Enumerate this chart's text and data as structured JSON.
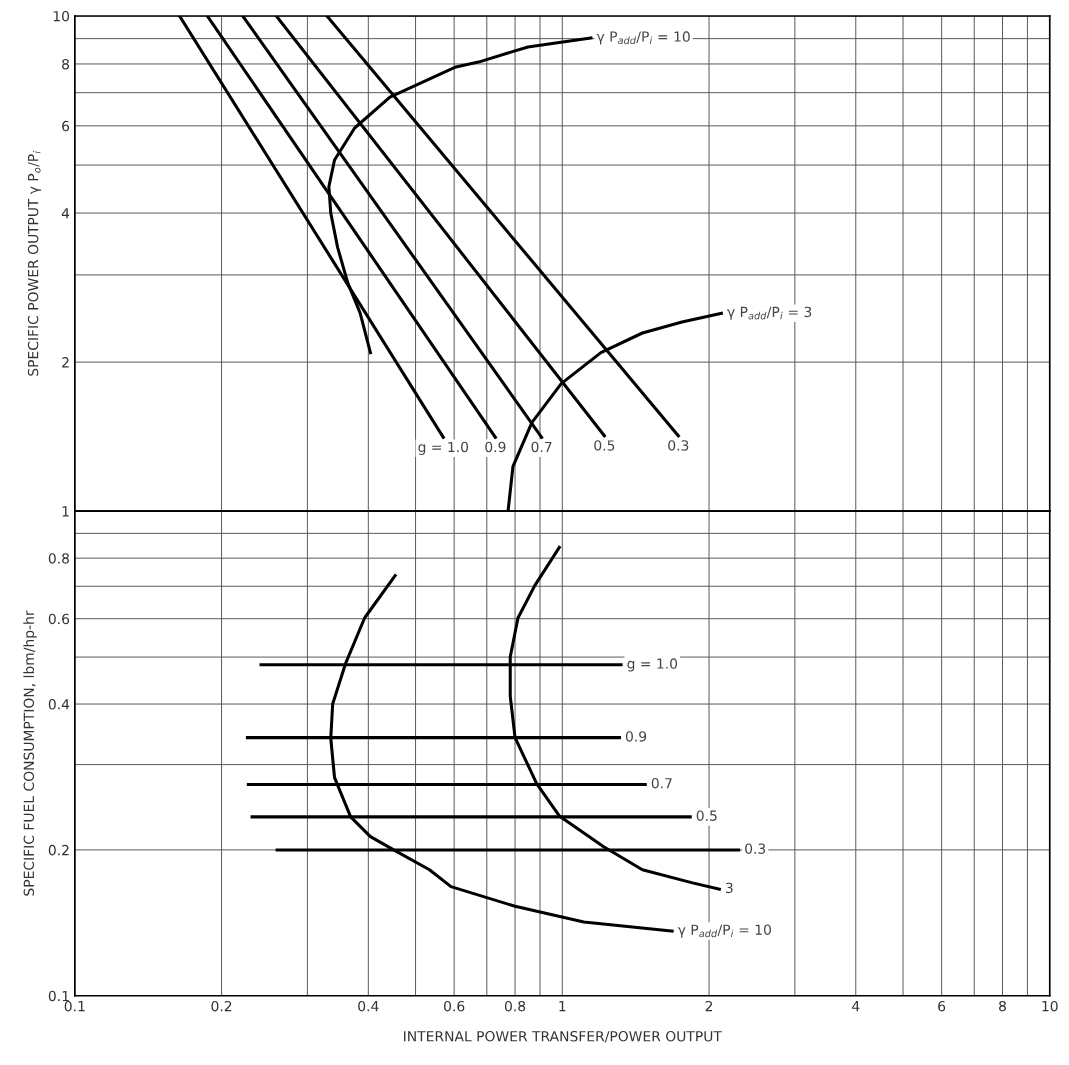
{
  "chart_data": [
    {
      "type": "line",
      "ylabel": "SPECIFIC POWER OUTPUT γ P$_{o}$/P$_{i}$",
      "log": "xy",
      "grid": true,
      "legend": false,
      "tick_labels": "y",
      "line_style": "solid",
      "marker": "none",
      "xlim": [
        0.1,
        10
      ],
      "ylim": [
        1,
        10
      ],
      "xticks": [
        0.1,
        0.2,
        {
          "value": 0.3,
          "label": null
        },
        0.4,
        {
          "value": 0.5,
          "label": null
        },
        0.6,
        {
          "value": 0.7,
          "label": null
        },
        0.8,
        {
          "value": 0.9,
          "label": null
        },
        1,
        2,
        {
          "value": 3,
          "label": null
        },
        4,
        {
          "value": 5,
          "label": null
        },
        6,
        {
          "value": 7,
          "label": null
        },
        8,
        {
          "value": 9,
          "label": null
        },
        10
      ],
      "yticks": [
        1,
        2,
        {
          "value": 3,
          "label": null
        },
        4,
        {
          "value": 5,
          "label": null
        },
        6,
        {
          "value": 7,
          "label": null
        },
        8,
        {
          "value": 9,
          "label": null
        },
        10
      ],
      "series": [
        {
          "name": "g = 1.0",
          "color": "#000000",
          "x": [
            0.164,
            0.57
          ],
          "values": [
            10,
            1.41
          ]
        },
        {
          "name": "0.9",
          "color": "#000000",
          "x": [
            0.187,
            0.729
          ],
          "values": [
            10,
            1.41
          ]
        },
        {
          "name": "0.7",
          "color": "#000000",
          "x": [
            0.221,
            0.907
          ],
          "values": [
            10,
            1.41
          ]
        },
        {
          "name": "0.5",
          "color": "#000000",
          "x": [
            0.259,
            1.22
          ],
          "values": [
            10,
            1.42
          ]
        },
        {
          "name": "0.3",
          "color": "#000000",
          "x": [
            0.329,
            1.73
          ],
          "values": [
            10,
            1.42
          ]
        },
        {
          "name": "γ P$_{add}$/P$_{i}$ = 10",
          "color": "#000000",
          "x": [
            0.404,
            0.385,
            0.363,
            0.346,
            0.335,
            0.332,
            0.341,
            0.375,
            0.443,
            0.605,
            0.673,
            0.85,
            1.145
          ],
          "values": [
            2.09,
            2.51,
            2.89,
            3.41,
            4.0,
            4.52,
            5.12,
            5.94,
            6.86,
            7.89,
            8.07,
            8.66,
            9.03
          ]
        },
        {
          "name": "γ P$_{add}$/P$_{i}$ = 3",
          "color": "#000000",
          "x": [
            0.774,
            0.792,
            0.866,
            0.995,
            1.2,
            1.46,
            1.76,
            2.12
          ],
          "values": [
            1.0,
            1.23,
            1.51,
            1.81,
            2.09,
            2.29,
            2.41,
            2.51
          ]
        }
      ]
    },
    {
      "type": "line",
      "xlabel": "INTERNAL POWER TRANSFER/POWER OUTPUT",
      "ylabel": "SPECIFIC FUEL CONSUMPTION, lbm/hp-hr",
      "log": "xy",
      "grid": true,
      "legend": false,
      "line_style": "solid",
      "marker": "none",
      "xlim": [
        0.1,
        10
      ],
      "ylim": [
        0.1,
        1
      ],
      "xticks": [
        0.1,
        0.2,
        {
          "value": 0.3,
          "label": null
        },
        0.4,
        {
          "value": 0.5,
          "label": null
        },
        0.6,
        {
          "value": 0.7,
          "label": null
        },
        0.8,
        {
          "value": 0.9,
          "label": null
        },
        1,
        2,
        {
          "value": 3,
          "label": null
        },
        4,
        {
          "value": 5,
          "label": null
        },
        6,
        {
          "value": 7,
          "label": null
        },
        8,
        {
          "value": 9,
          "label": null
        },
        10
      ],
      "yticks": [
        0.1,
        0.2,
        {
          "value": 0.3,
          "label": null
        },
        0.4,
        {
          "value": 0.5,
          "label": null
        },
        0.6,
        {
          "value": 0.7,
          "label": null
        },
        0.8,
        {
          "value": 0.9,
          "label": null
        },
        {
          "value": 1,
          "label": null
        }
      ],
      "series": [
        {
          "name": "g = 1.0",
          "color": "#000000",
          "x": [
            0.241,
            1.32
          ],
          "values": [
            0.482,
            0.482
          ]
        },
        {
          "name": "0.9",
          "color": "#000000",
          "x": [
            0.226,
            1.31
          ],
          "values": [
            0.341,
            0.341
          ]
        },
        {
          "name": "0.7",
          "color": "#000000",
          "x": [
            0.227,
            1.48
          ],
          "values": [
            0.273,
            0.273
          ]
        },
        {
          "name": "0.5",
          "color": "#000000",
          "x": [
            0.231,
            1.83
          ],
          "values": [
            0.234,
            0.234
          ]
        },
        {
          "name": "0.3",
          "color": "#000000",
          "x": [
            0.26,
            2.3
          ],
          "values": [
            0.2,
            0.2
          ]
        },
        {
          "name": "3",
          "color": "#000000",
          "x": [
            0.986,
            0.878,
            0.811,
            0.782,
            0.782,
            0.8,
            0.886,
            0.986,
            1.216,
            1.46,
            1.85,
            2.1
          ],
          "values": [
            0.842,
            0.702,
            0.602,
            0.5,
            0.415,
            0.341,
            0.274,
            0.235,
            0.203,
            0.182,
            0.171,
            0.166
          ]
        },
        {
          "name": "γ P$_{add}$/P$_{i}$ = 10",
          "color": "#000000",
          "x": [
            0.454,
            0.393,
            0.359,
            0.338,
            0.335,
            0.341,
            0.368,
            0.404,
            0.451,
            0.534,
            0.591,
            0.8,
            1.107,
            1.68
          ],
          "values": [
            0.736,
            0.602,
            0.484,
            0.4,
            0.34,
            0.282,
            0.234,
            0.213,
            0.2,
            0.182,
            0.168,
            0.153,
            0.142,
            0.136
          ]
        }
      ]
    }
  ]
}
